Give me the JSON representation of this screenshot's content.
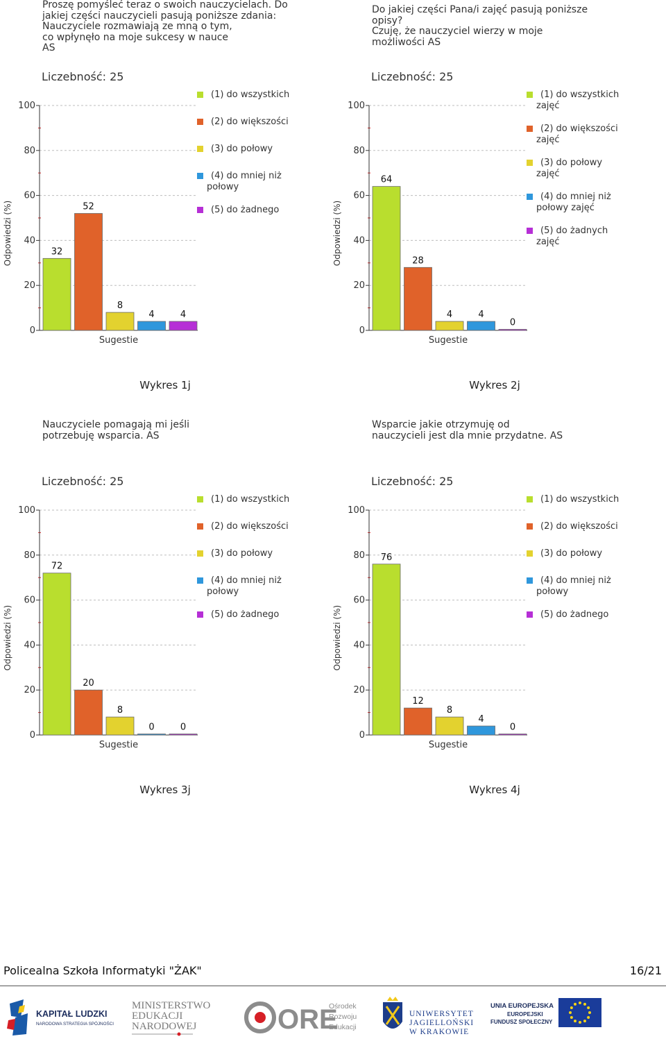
{
  "colors": [
    "#b9de2e",
    "#e0622a",
    "#e3d22f",
    "#2f97dc",
    "#b62fd6"
  ],
  "chart_data": [
    {
      "type": "bar",
      "question": "Proszę pomyśleć teraz o swoich nauczycielach. Do\njakiej części nauczycieli pasują poniższe zdania:\nNauczyciele rozmawiają ze mną o tym,\nco wpłynęło na moje sukcesy w nauce\nAS",
      "title": "Liczebność: 25",
      "xlabel": "Sugestie",
      "ylabel": "Odpowiedzi (%)",
      "ylim": [
        0,
        100
      ],
      "yticks": [
        "0",
        "20",
        "40",
        "60",
        "80",
        "100"
      ],
      "categories": [
        "(1) do wszystkich",
        "(2) do większości",
        "(3) do połowy",
        "(4) do mniej niż połowy",
        "(5) do żadnego"
      ],
      "legend": [
        [
          "(1) do wszystkich"
        ],
        [
          "(2) do większości"
        ],
        [
          "(3) do połowy"
        ],
        [
          "(4) do mniej niż",
          "połowy"
        ],
        [
          "(5) do żadnego"
        ]
      ],
      "values": [
        32,
        52,
        8,
        4,
        4
      ],
      "value_labels": [
        "32",
        "52",
        "8",
        "4",
        "4"
      ],
      "caption": "Wykres 1j"
    },
    {
      "type": "bar",
      "question": "Do jakiej części Pana/i zajęć pasują poniższe\nopisy?\nCzuję, że nauczyciel wierzy w moje\nmożliwości AS",
      "title": "Liczebność: 25",
      "xlabel": "Sugestie",
      "ylabel": "Odpowiedzi (%)",
      "ylim": [
        0,
        100
      ],
      "yticks": [
        "0",
        "20",
        "40",
        "60",
        "80",
        "100"
      ],
      "categories": [
        "(1) do wszystkich zajęć",
        "(2) do większości zajęć",
        "(3) do połowy zajęć",
        "(4) do mniej niż połowy zajęć",
        "(5) do żadnych zajęć"
      ],
      "legend": [
        [
          "(1) do wszystkich",
          "zajęć"
        ],
        [
          "(2) do większości",
          "zajęć"
        ],
        [
          "(3) do połowy",
          "zajęć"
        ],
        [
          "(4) do mniej niż",
          "połowy zajęć"
        ],
        [
          "(5) do żadnych",
          "zajęć"
        ]
      ],
      "values": [
        64,
        28,
        4,
        4,
        0
      ],
      "value_labels": [
        "64",
        "28",
        "4",
        "4",
        "0"
      ],
      "caption": "Wykres 2j"
    },
    {
      "type": "bar",
      "question": "Nauczyciele pomagają mi jeśli\npotrzebuję wsparcia. AS",
      "title": "Liczebność: 25",
      "xlabel": "Sugestie",
      "ylabel": "Odpowiedzi (%)",
      "ylim": [
        0,
        100
      ],
      "yticks": [
        "0",
        "20",
        "40",
        "60",
        "80",
        "100"
      ],
      "categories": [
        "(1) do wszystkich",
        "(2) do większości",
        "(3) do połowy",
        "(4) do mniej niż połowy",
        "(5) do żadnego"
      ],
      "legend": [
        [
          "(1) do wszystkich"
        ],
        [
          "(2) do większości"
        ],
        [
          "(3) do połowy"
        ],
        [
          "(4) do mniej niż",
          "połowy"
        ],
        [
          "(5) do żadnego"
        ]
      ],
      "values": [
        72,
        20,
        8,
        0,
        0
      ],
      "value_labels": [
        "72",
        "20",
        "8",
        "0",
        "0"
      ],
      "caption": "Wykres 3j"
    },
    {
      "type": "bar",
      "question": "Wsparcie jakie  otrzymuję od\nnauczycieli jest dla mnie przydatne. AS",
      "title": "Liczebność: 25",
      "xlabel": "Sugestie",
      "ylabel": "Odpowiedzi (%)",
      "ylim": [
        0,
        100
      ],
      "yticks": [
        "0",
        "20",
        "40",
        "60",
        "80",
        "100"
      ],
      "categories": [
        "(1) do wszystkich",
        "(2) do większości",
        "(3) do połowy",
        "(4) do mniej niż połowy",
        "(5) do żadnego"
      ],
      "legend": [
        [
          "(1) do wszystkich"
        ],
        [
          "(2) do większości"
        ],
        [
          "(3) do połowy"
        ],
        [
          "(4) do mniej niż",
          "połowy"
        ],
        [
          "(5) do żadnego"
        ]
      ],
      "values": [
        76,
        12,
        8,
        4,
        0
      ],
      "value_labels": [
        "76",
        "12",
        "8",
        "4",
        "0"
      ],
      "caption": "Wykres 4j"
    }
  ],
  "footer": {
    "school": "Policealna Szkoła Informatyki \"ŻAK\"",
    "page": "16/21"
  },
  "logos": {
    "kl_title": "KAPITAŁ LUDZKI",
    "kl_sub": "NARODOWA STRATEGIA SPÓJNOŚCI",
    "men_1": "MINISTERSTWO",
    "men_2": "EDUKACJI",
    "men_3": "NARODOWEJ",
    "ore_mark": "ORE",
    "ore_1": "Ośrodek",
    "ore_2": "Rozwoju",
    "ore_3": "Edukacji",
    "uj_1": "UNIWERSYTET",
    "uj_2": "JAGIELLOŃSKI",
    "uj_3": "W KRAKOWIE",
    "ue_1": "UNIA EUROPEJSKA",
    "ue_2": "EUROPEJSKI",
    "ue_3": "FUNDUSZ SPOŁECZNY"
  }
}
